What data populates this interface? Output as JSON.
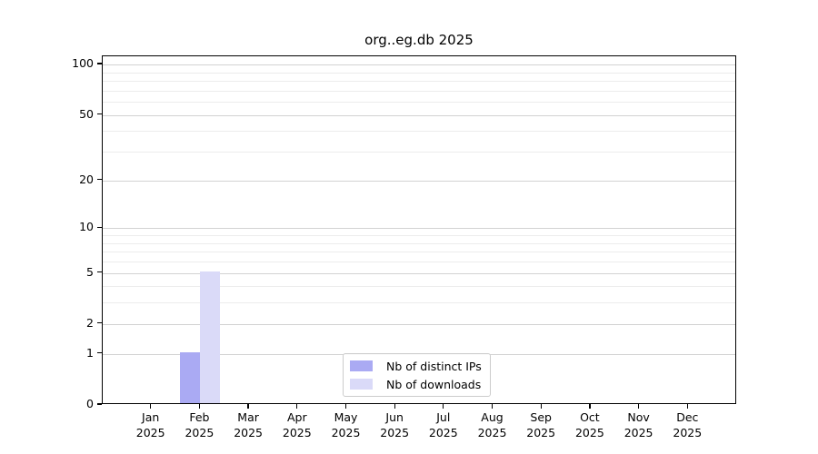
{
  "chart_data": {
    "type": "bar",
    "title": "org..eg.db 2025",
    "categories": [
      "Jan 2025",
      "Feb 2025",
      "Mar 2025",
      "Apr 2025",
      "May 2025",
      "Jun 2025",
      "Jul 2025",
      "Aug 2025",
      "Sep 2025",
      "Oct 2025",
      "Nov 2025",
      "Dec 2025"
    ],
    "series": [
      {
        "name": "Nb of distinct IPs",
        "color": "#aaaaf3",
        "values": [
          0,
          1,
          0,
          0,
          0,
          0,
          0,
          0,
          0,
          0,
          0,
          0
        ]
      },
      {
        "name": "Nb of downloads",
        "color": "#dadaf8",
        "values": [
          0,
          5,
          0,
          0,
          0,
          0,
          0,
          0,
          0,
          0,
          0,
          0
        ]
      }
    ],
    "xlabel": "",
    "ylabel": "",
    "yscale": "log1p",
    "ylim": [
      0,
      112
    ],
    "yticks": [
      0,
      1,
      2,
      5,
      10,
      20,
      50,
      100
    ],
    "yticks_minor": [
      3,
      4,
      6,
      7,
      8,
      9,
      30,
      40,
      60,
      70,
      80,
      90
    ],
    "grid": "horizontal-only",
    "legend_position": "lower center",
    "colors": {
      "major_grid": "#d2d2d2",
      "minor_grid": "#ececec",
      "axis_frame": "#000000",
      "background": "#ffffff"
    }
  }
}
